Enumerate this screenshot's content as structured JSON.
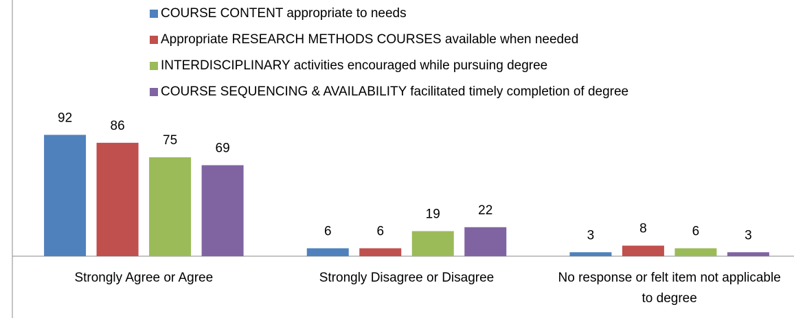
{
  "chart_data": {
    "type": "bar",
    "categories": [
      "Strongly Agree or Agree",
      "Strongly Disagree or Disagree",
      "No response or felt item not applicable to degree"
    ],
    "series": [
      {
        "name": "COURSE CONTENT appropriate to needs",
        "color": "#4f81bd",
        "values": [
          92,
          6,
          3
        ]
      },
      {
        "name": "Appropriate RESEARCH METHODS COURSES available when needed",
        "color": "#c0504d",
        "values": [
          86,
          6,
          8
        ]
      },
      {
        "name": "INTERDISCIPLINARY activities encouraged while pursuing degree",
        "color": "#9bbb59",
        "values": [
          75,
          19,
          6
        ]
      },
      {
        "name": "COURSE SEQUENCING & AVAILABILITY facilitated timely completion of degree",
        "color": "#8064a2",
        "values": [
          69,
          22,
          3
        ]
      }
    ],
    "ylim": [
      0,
      100
    ],
    "legend": "top"
  }
}
